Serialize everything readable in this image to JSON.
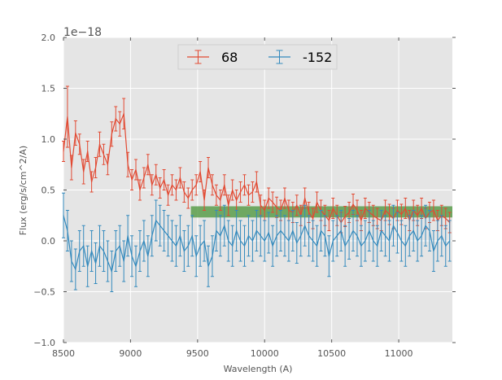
{
  "chart_data": {
    "type": "line",
    "xlabel": "Wavelength (A)",
    "ylabel": "Flux (erg/s/cm^2/A)",
    "y_offset_label": "1e−18",
    "xlim": [
      8500,
      11400
    ],
    "ylim": [
      -1.0,
      2.0
    ],
    "x_ticks": [
      8500,
      9000,
      9500,
      10000,
      10500,
      11000
    ],
    "x_tick_labels": [
      "8500",
      "9000",
      "9500",
      "10000",
      "10500",
      "11000"
    ],
    "y_ticks": [
      -1.0,
      -0.5,
      0.0,
      0.5,
      1.0,
      1.5,
      2.0
    ],
    "y_tick_labels": [
      "−1.0",
      "−0.5",
      "0.0",
      "0.5",
      "1.0",
      "1.5",
      "2.0"
    ],
    "grid": true,
    "legend_position": "top-center",
    "band": {
      "x_start": 9450,
      "x_end": 11400,
      "y_low": 0.23,
      "y_high": 0.34,
      "color": "#5a9e4b"
    },
    "series": [
      {
        "name": "68",
        "color": "#e24a33",
        "x": [
          8500,
          8530,
          8560,
          8590,
          8620,
          8650,
          8680,
          8710,
          8740,
          8770,
          8800,
          8830,
          8860,
          8890,
          8920,
          8950,
          8980,
          9010,
          9040,
          9070,
          9100,
          9130,
          9160,
          9190,
          9220,
          9250,
          9280,
          9310,
          9340,
          9370,
          9400,
          9430,
          9460,
          9490,
          9520,
          9550,
          9580,
          9610,
          9640,
          9670,
          9700,
          9730,
          9760,
          9790,
          9820,
          9850,
          9880,
          9910,
          9940,
          9970,
          10000,
          10030,
          10060,
          10090,
          10120,
          10150,
          10180,
          10210,
          10240,
          10270,
          10300,
          10330,
          10360,
          10390,
          10420,
          10450,
          10480,
          10510,
          10540,
          10570,
          10600,
          10630,
          10660,
          10690,
          10720,
          10750,
          10780,
          10810,
          10840,
          10870,
          10900,
          10930,
          10960,
          10990,
          11020,
          11050,
          11080,
          11110,
          11140,
          11170,
          11200,
          11230,
          11260,
          11290,
          11320,
          11350,
          11380
        ],
        "y": [
          0.88,
          1.22,
          0.72,
          1.06,
          0.95,
          0.68,
          0.88,
          0.58,
          0.72,
          0.95,
          0.85,
          0.75,
          1.05,
          1.2,
          1.15,
          1.25,
          0.75,
          0.6,
          0.7,
          0.5,
          0.62,
          0.75,
          0.55,
          0.65,
          0.52,
          0.6,
          0.45,
          0.55,
          0.5,
          0.62,
          0.48,
          0.42,
          0.5,
          0.55,
          0.68,
          0.4,
          0.72,
          0.55,
          0.45,
          0.4,
          0.55,
          0.35,
          0.5,
          0.4,
          0.48,
          0.55,
          0.45,
          0.48,
          0.58,
          0.35,
          0.3,
          0.42,
          0.38,
          0.33,
          0.3,
          0.42,
          0.3,
          0.28,
          0.35,
          0.25,
          0.42,
          0.28,
          0.22,
          0.38,
          0.3,
          0.25,
          0.2,
          0.32,
          0.25,
          0.18,
          0.24,
          0.28,
          0.36,
          0.3,
          0.2,
          0.32,
          0.28,
          0.25,
          0.22,
          0.2,
          0.3,
          0.26,
          0.22,
          0.3,
          0.26,
          0.32,
          0.2,
          0.3,
          0.25,
          0.32,
          0.22,
          0.28,
          0.3,
          0.2,
          0.25,
          0.22,
          0.18
        ],
        "err": [
          0.1,
          0.3,
          0.12,
          0.12,
          0.1,
          0.12,
          0.1,
          0.1,
          0.1,
          0.12,
          0.1,
          0.1,
          0.12,
          0.12,
          0.12,
          0.15,
          0.12,
          0.1,
          0.1,
          0.1,
          0.1,
          0.1,
          0.1,
          0.1,
          0.1,
          0.1,
          0.1,
          0.1,
          0.1,
          0.1,
          0.1,
          0.1,
          0.1,
          0.1,
          0.1,
          0.1,
          0.1,
          0.1,
          0.1,
          0.1,
          0.1,
          0.1,
          0.1,
          0.1,
          0.1,
          0.1,
          0.1,
          0.1,
          0.1,
          0.1,
          0.1,
          0.1,
          0.1,
          0.1,
          0.1,
          0.1,
          0.1,
          0.1,
          0.1,
          0.1,
          0.1,
          0.1,
          0.1,
          0.1,
          0.1,
          0.1,
          0.1,
          0.1,
          0.1,
          0.1,
          0.1,
          0.1,
          0.1,
          0.1,
          0.1,
          0.1,
          0.1,
          0.1,
          0.1,
          0.1,
          0.1,
          0.1,
          0.1,
          0.1,
          0.1,
          0.1,
          0.1,
          0.1,
          0.1,
          0.1,
          0.1,
          0.1,
          0.1,
          0.1,
          0.1,
          0.1,
          0.1
        ]
      },
      {
        "name": "-152",
        "color": "#348abd",
        "x": [
          8500,
          8530,
          8560,
          8590,
          8620,
          8650,
          8680,
          8710,
          8740,
          8770,
          8800,
          8830,
          8860,
          8890,
          8920,
          8950,
          8980,
          9010,
          9040,
          9070,
          9100,
          9130,
          9160,
          9190,
          9220,
          9250,
          9280,
          9310,
          9340,
          9370,
          9400,
          9430,
          9460,
          9490,
          9520,
          9550,
          9580,
          9610,
          9640,
          9670,
          9700,
          9730,
          9760,
          9790,
          9820,
          9850,
          9880,
          9910,
          9940,
          9970,
          10000,
          10030,
          10060,
          10090,
          10120,
          10150,
          10180,
          10210,
          10240,
          10270,
          10300,
          10330,
          10360,
          10390,
          10420,
          10450,
          10480,
          10510,
          10540,
          10570,
          10600,
          10630,
          10660,
          10690,
          10720,
          10750,
          10780,
          10810,
          10840,
          10870,
          10900,
          10930,
          10960,
          10990,
          11020,
          11050,
          11080,
          11110,
          11140,
          11170,
          11200,
          11230,
          11260,
          11290,
          11320,
          11350,
          11380
        ],
        "y": [
          0.25,
          0.1,
          -0.2,
          -0.28,
          -0.1,
          -0.05,
          -0.25,
          -0.1,
          -0.22,
          -0.05,
          -0.1,
          -0.2,
          -0.3,
          -0.1,
          -0.05,
          -0.2,
          0.05,
          -0.15,
          -0.25,
          -0.1,
          0.0,
          -0.15,
          0.05,
          0.2,
          0.15,
          0.1,
          0.05,
          0.0,
          -0.05,
          0.05,
          -0.1,
          -0.05,
          0.05,
          -0.15,
          -0.05,
          0.0,
          -0.25,
          -0.15,
          0.1,
          0.05,
          0.15,
          0.0,
          -0.05,
          0.1,
          0.0,
          -0.05,
          0.05,
          0.0,
          0.1,
          0.05,
          0.0,
          0.08,
          -0.05,
          0.05,
          0.1,
          0.05,
          0.0,
          0.1,
          -0.02,
          0.05,
          0.15,
          0.05,
          0.0,
          -0.05,
          0.1,
          0.05,
          -0.15,
          0.0,
          0.05,
          0.1,
          -0.05,
          0.02,
          0.1,
          0.05,
          -0.05,
          0.0,
          0.1,
          0.0,
          -0.05,
          0.1,
          0.05,
          0.0,
          0.15,
          0.08,
          0.0,
          -0.05,
          0.05,
          0.1,
          0.0,
          0.05,
          0.15,
          0.1,
          -0.1,
          0.0,
          0.05,
          -0.05,
          0.0
        ],
        "err": [
          0.22,
          0.2,
          0.2,
          0.2,
          0.2,
          0.2,
          0.2,
          0.2,
          0.2,
          0.2,
          0.2,
          0.2,
          0.2,
          0.2,
          0.2,
          0.2,
          0.2,
          0.2,
          0.2,
          0.2,
          0.2,
          0.2,
          0.2,
          0.2,
          0.2,
          0.2,
          0.2,
          0.2,
          0.2,
          0.2,
          0.2,
          0.2,
          0.2,
          0.2,
          0.2,
          0.2,
          0.2,
          0.2,
          0.2,
          0.2,
          0.2,
          0.2,
          0.2,
          0.2,
          0.2,
          0.2,
          0.2,
          0.2,
          0.2,
          0.2,
          0.2,
          0.2,
          0.2,
          0.2,
          0.2,
          0.2,
          0.2,
          0.2,
          0.2,
          0.2,
          0.2,
          0.2,
          0.2,
          0.2,
          0.2,
          0.2,
          0.2,
          0.2,
          0.2,
          0.2,
          0.2,
          0.2,
          0.2,
          0.2,
          0.2,
          0.2,
          0.2,
          0.2,
          0.2,
          0.2,
          0.2,
          0.2,
          0.2,
          0.2,
          0.2,
          0.2,
          0.2,
          0.2,
          0.2,
          0.2,
          0.2,
          0.2,
          0.2,
          0.2,
          0.2,
          0.2,
          0.2
        ]
      }
    ]
  }
}
